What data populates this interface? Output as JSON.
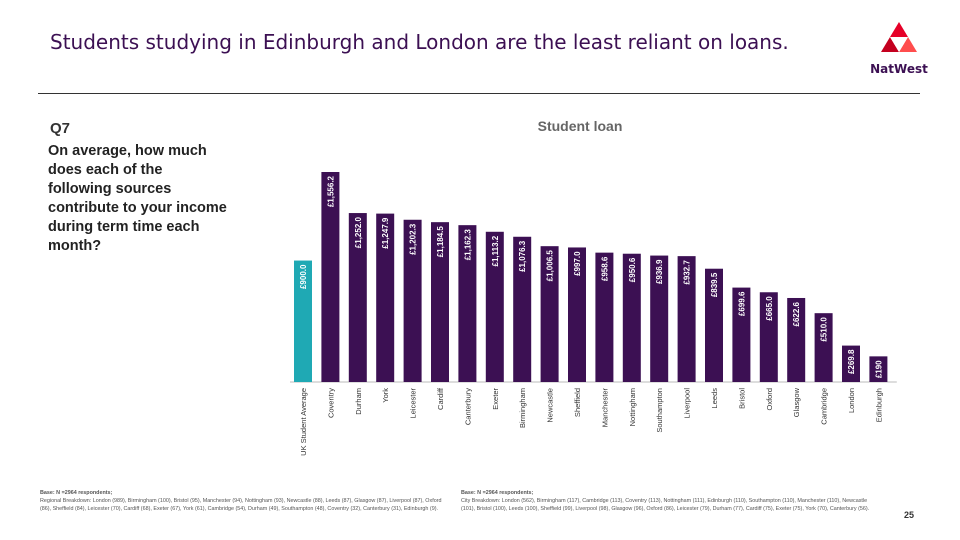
{
  "slide": {
    "title": "Students studying in Edinburgh and London are the least reliant on loans.",
    "page_number": "25"
  },
  "brand": {
    "name": "NatWest",
    "colors": {
      "primary": "#3c1053",
      "accent": "#1fa9b4",
      "logo_red": "#e60028"
    }
  },
  "question": {
    "number": "Q7",
    "text": "On average, how much does each of the following sources contribute to your income during term time each month?"
  },
  "chart_data": {
    "type": "bar",
    "title": "Student loan",
    "categories": [
      "UK Student Average",
      "Coventry",
      "Durham",
      "York",
      "Leicester",
      "Cardiff",
      "Canterbury",
      "Exeter",
      "Birmingham",
      "Newcastle",
      "Sheffield",
      "Manchester",
      "Nottingham",
      "Southampton",
      "Liverpool",
      "Leeds",
      "Bristol",
      "Oxford",
      "Glasgow",
      "Cambridge",
      "London",
      "Edinburgh"
    ],
    "values": [
      900.0,
      1556.2,
      1252.0,
      1247.9,
      1202.3,
      1184.5,
      1162.3,
      1113.2,
      1076.3,
      1006.5,
      997.0,
      958.6,
      950.6,
      936.9,
      932.7,
      839.5,
      699.6,
      665.0,
      622.6,
      510.0,
      269.8,
      190
    ],
    "labels": [
      "£900.0",
      "£1,556.2",
      "£1,252.0",
      "£1,247.9",
      "£1,202.3",
      "£1,184.5",
      "£1,162.3",
      "£1,113.2",
      "£1,076.3",
      "£1,006.5",
      "£997.0",
      "£958.6",
      "£950.6",
      "£936.9",
      "£932.7",
      "£839.5",
      "£699.6",
      "£665.0",
      "£622.6",
      "£510.0",
      "£269.8",
      "£190"
    ],
    "highlight_category": "UK Student Average",
    "colors": {
      "bar": "#3c1053",
      "highlight": "#1fa9b4"
    },
    "xlabel": "",
    "ylabel": "",
    "ylim": [
      0,
      1556.2
    ],
    "grid": false,
    "legend": "none"
  },
  "footnotes": {
    "left": {
      "head": "Base: N =2964 respondents;",
      "body": "Regional Breakdown: London (989), Birmingham (100), Bristol (95), Manchester (94), Nottingham (93), Newcastle (88), Leeds (87), Glasgow (87), Liverpool (87), Oxford (86), Sheffield (84), Leicester (70), Cardiff (68), Exeter (67), York (61), Cambridge (54), Durham (49), Southampton (48), Coventry (32), Canterbury (31), Edinburgh (9)."
    },
    "right": {
      "head": "Base: N =2964 respondents;",
      "body": "City Breakdown: London (562), Birmingham (117), Cambridge (113), Coventry (113), Nottingham (111), Edinburgh (110), Southampton (110), Manchester (110), Newcastle (101), Bristol (100), Leeds (100), Sheffield (99), Liverpool (98), Glasgow (96), Oxford (86), Leicester (79), Durham (77), Cardiff (75), Exeter (75), York (70), Canterbury (56)."
    }
  }
}
